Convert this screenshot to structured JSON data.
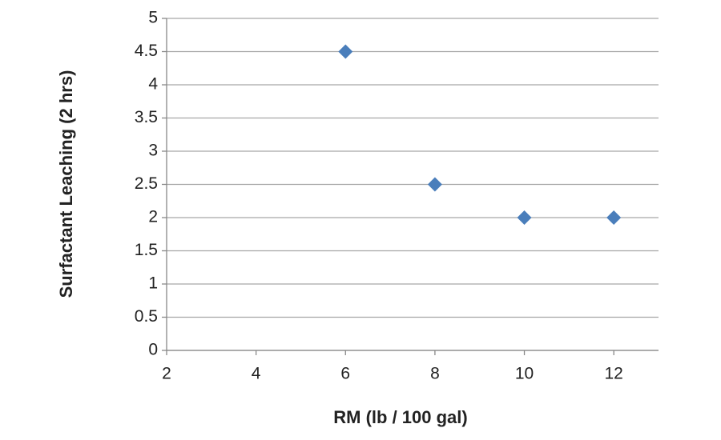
{
  "chart_data": {
    "type": "scatter",
    "x_label": "RM (lb / 100 gal)",
    "y_label": "Surfactant Leaching (2 hrs)",
    "x": [
      6,
      8,
      10,
      12
    ],
    "values": [
      4.5,
      2.5,
      2,
      2
    ],
    "color": "#4a7ebb",
    "xlim": [
      2,
      13
    ],
    "xticks": [
      2,
      4,
      6,
      8,
      10,
      12
    ],
    "ylim": [
      0,
      5
    ],
    "yticks": [
      0,
      0.5,
      1,
      1.5,
      2,
      2.5,
      3,
      3.5,
      4,
      4.5,
      5
    ],
    "grid": true
  }
}
